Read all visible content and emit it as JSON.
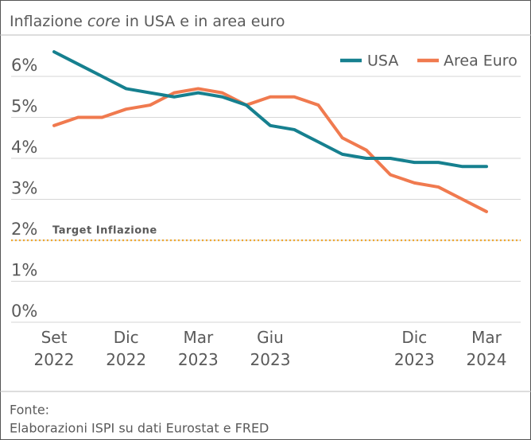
{
  "chart_data": {
    "type": "line",
    "title": {
      "before": "Inflazione",
      "emphasis": "core",
      "after": "in USA e in area euro"
    },
    "categories": [
      "Set 2022",
      null,
      null,
      "Dic 2022",
      null,
      null,
      "Mar 2023",
      null,
      null,
      "Giu 2023",
      null,
      null,
      null,
      null,
      null,
      "Dic 2023",
      null,
      null,
      "Mar 2024"
    ],
    "series": [
      {
        "name": "USA",
        "color": "#16808f",
        "values": [
          6.6,
          6.3,
          6.0,
          5.7,
          5.6,
          5.5,
          5.6,
          5.5,
          5.3,
          4.8,
          4.7,
          4.4,
          4.1,
          4.0,
          4.0,
          3.9,
          3.9,
          3.8,
          3.8
        ]
      },
      {
        "name": "Area Euro",
        "color": "#f07a4f",
        "values": [
          4.8,
          5.0,
          5.0,
          5.2,
          5.3,
          5.6,
          5.7,
          5.6,
          5.3,
          5.5,
          5.5,
          5.3,
          4.5,
          4.2,
          3.6,
          3.4,
          3.3,
          3.0,
          2.7
        ]
      }
    ],
    "ylim": [
      0,
      7
    ],
    "yticks": [
      {
        "value": 0,
        "label": "0%"
      },
      {
        "value": 1,
        "label": "1%"
      },
      {
        "value": 2,
        "label": "2%"
      },
      {
        "value": 3,
        "label": "3%"
      },
      {
        "value": 4,
        "label": "4%"
      },
      {
        "value": 5,
        "label": "5%"
      },
      {
        "value": 6,
        "label": "6%"
      }
    ],
    "grid": true,
    "legend": "top-right",
    "target": {
      "label": "Target Inflazione",
      "value": 2,
      "color": "#f0a830"
    },
    "source": [
      "Fonte:",
      "Elaborazioni ISPI su dati Eurostat e FRED"
    ]
  }
}
